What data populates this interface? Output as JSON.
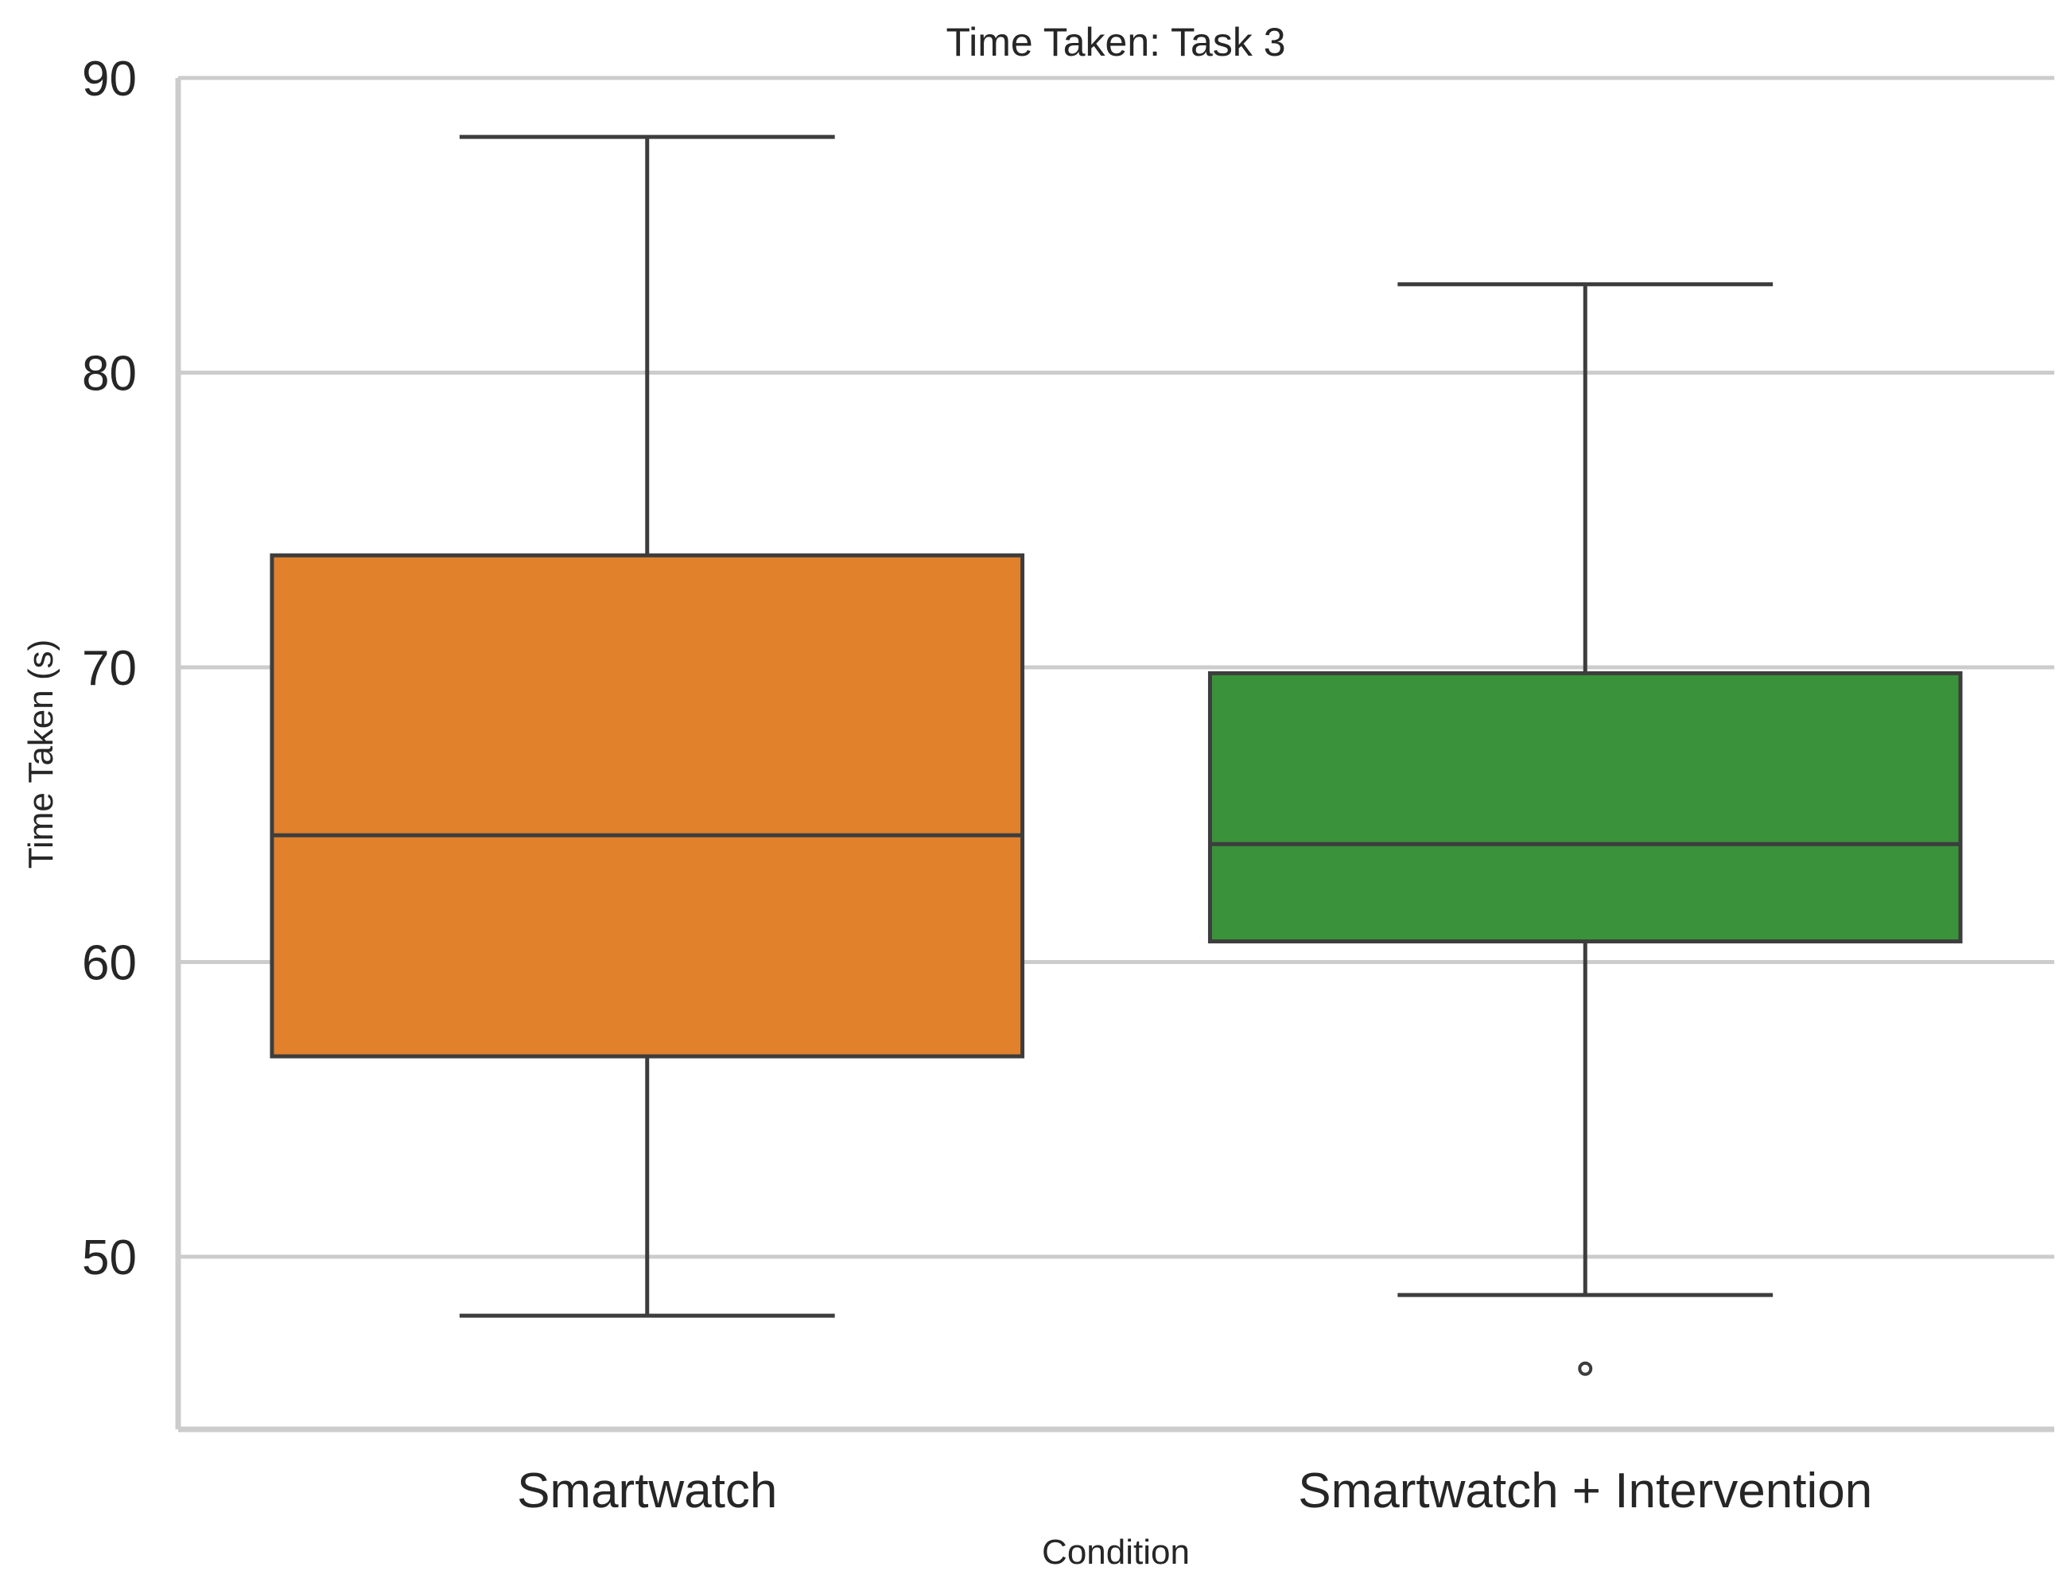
{
  "chart_data": {
    "type": "box",
    "title": "Time Taken: Task 3",
    "xlabel": "Condition",
    "ylabel": "Time Taken (s)",
    "categories": [
      "Smartwatch",
      "Smartwatch + Intervention"
    ],
    "ylim": [
      44.2,
      90
    ],
    "yticks": [
      50,
      60,
      70,
      80,
      90
    ],
    "grid": true,
    "boxes": [
      {
        "category": "Smartwatch",
        "whisker_low": 48.0,
        "q1": 56.8,
        "median": 64.3,
        "q3": 73.8,
        "whisker_high": 88.0,
        "outliers": [],
        "color": "#e1812c"
      },
      {
        "category": "Smartwatch + Intervention",
        "whisker_low": 48.7,
        "q1": 60.7,
        "median": 64.0,
        "q3": 69.8,
        "whisker_high": 83.0,
        "outliers": [
          46.2
        ],
        "color": "#3a923a"
      }
    ]
  }
}
